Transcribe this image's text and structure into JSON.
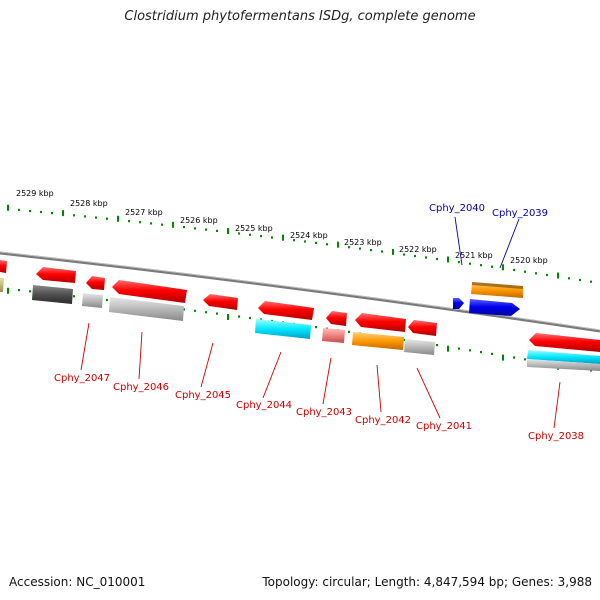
{
  "title": "Clostridium phytofermentans ISDg, complete genome",
  "accession": "Accession: NC_010001",
  "topology": "Topology: circular; Length: 4,847,594 bp; Genes: 3,988",
  "scale_labels": [
    "2529 kbp",
    "2528 kbp",
    "2527 kbp",
    "2526 kbp",
    "2525 kbp",
    "2524 kbp",
    "2523 kbp",
    "2522 kbp",
    "2521 kbp",
    "2520 kbp"
  ],
  "genes": [
    {
      "name": "Cphy_2047",
      "color": "#cc0000"
    },
    {
      "name": "Cphy_2046",
      "color": "#cc0000"
    },
    {
      "name": "Cphy_2045",
      "color": "#cc0000"
    },
    {
      "name": "Cphy_2044",
      "color": "#cc0000"
    },
    {
      "name": "Cphy_2043",
      "color": "#cc0000"
    },
    {
      "name": "Cphy_2042",
      "color": "#cc0000"
    },
    {
      "name": "Cphy_2041",
      "color": "#cc0000"
    },
    {
      "name": "Cphy_2040",
      "color": "#0000aa"
    },
    {
      "name": "Cphy_2039",
      "color": "#0000aa"
    },
    {
      "name": "Cphy_2038",
      "color": "#cc0000"
    }
  ],
  "colors": {
    "ticks": "#008800",
    "backbone": "#7a7a7a",
    "forward_gene": "#ff0000",
    "reverse_gene": "#0000ee",
    "cog_orange": "#ff9900",
    "cog_cyan": "#00e6ff",
    "cog_grey": "#b4b4b4",
    "cog_dark": "#505050",
    "cog_pink": "#f08080"
  }
}
